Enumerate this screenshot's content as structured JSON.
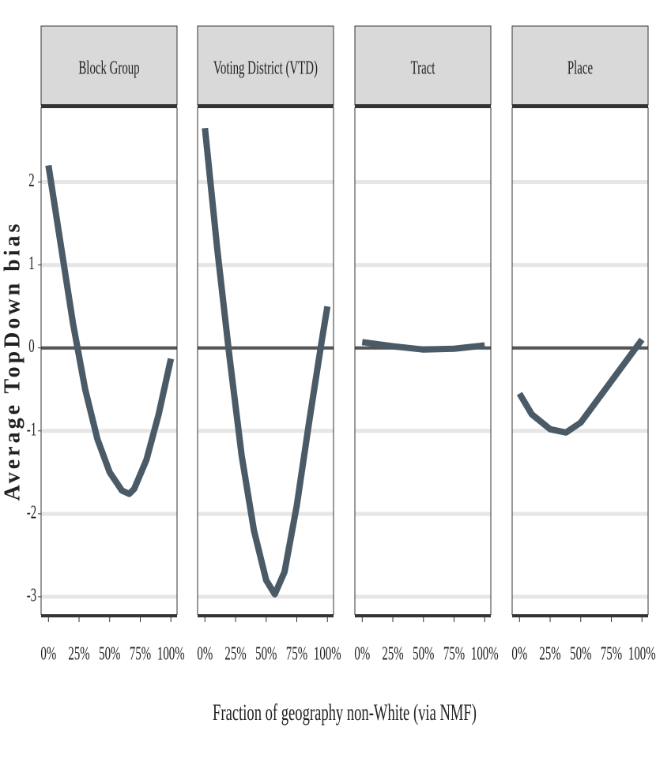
{
  "x_label": "Fraction of geography non-White (via NMF)",
  "y_label": "Average TopDown bias",
  "chart_data": [
    {
      "type": "line",
      "title": "Block Group",
      "x": [
        0,
        10,
        20,
        30,
        40,
        50,
        60,
        66,
        70,
        80,
        90,
        100
      ],
      "values": [
        2.2,
        1.25,
        0.3,
        -0.5,
        -1.1,
        -1.5,
        -1.72,
        -1.76,
        -1.7,
        -1.35,
        -0.8,
        -0.13
      ],
      "color": "#4a5a66",
      "xlim": [
        -6,
        105
      ],
      "ylim": [
        -3.22,
        2.9
      ],
      "xticks": [
        {
          "value": 0,
          "label": "0%"
        },
        {
          "value": 25,
          "label": "25%"
        },
        {
          "value": 50,
          "label": "50%"
        },
        {
          "value": 75,
          "label": "75%"
        },
        {
          "value": 100,
          "label": "100%"
        }
      ],
      "yticks": [
        2,
        1,
        0,
        -1,
        -2,
        -3
      ],
      "grid": true
    },
    {
      "type": "line",
      "title": "Voting District (VTD)",
      "x": [
        0,
        10,
        20,
        30,
        40,
        50,
        57,
        65,
        75,
        85,
        95,
        100
      ],
      "values": [
        2.65,
        1.2,
        -0.1,
        -1.3,
        -2.2,
        -2.8,
        -2.97,
        -2.7,
        -1.9,
        -0.9,
        0.05,
        0.5
      ],
      "color": "#4a5a66",
      "xlim": [
        -6,
        105
      ],
      "ylim": [
        -3.22,
        2.9
      ],
      "xticks": [
        {
          "value": 0,
          "label": "0%"
        },
        {
          "value": 25,
          "label": "25%"
        },
        {
          "value": 50,
          "label": "50%"
        },
        {
          "value": 75,
          "label": "75%"
        },
        {
          "value": 100,
          "label": "100%"
        }
      ],
      "yticks": [
        2,
        1,
        0,
        -1,
        -2,
        -3
      ],
      "grid": true
    },
    {
      "type": "line",
      "title": "Tract",
      "x": [
        0,
        25,
        50,
        75,
        100
      ],
      "values": [
        0.07,
        0.02,
        -0.02,
        -0.01,
        0.03
      ],
      "color": "#4a5a66",
      "xlim": [
        -6,
        105
      ],
      "ylim": [
        -3.22,
        2.9
      ],
      "xticks": [
        {
          "value": 0,
          "label": "0%"
        },
        {
          "value": 25,
          "label": "25%"
        },
        {
          "value": 50,
          "label": "50%"
        },
        {
          "value": 75,
          "label": "75%"
        },
        {
          "value": 100,
          "label": "100%"
        }
      ],
      "yticks": [
        2,
        1,
        0,
        -1,
        -2,
        -3
      ],
      "grid": true
    },
    {
      "type": "line",
      "title": "Place",
      "x": [
        0,
        10,
        25,
        38,
        50,
        75,
        100
      ],
      "values": [
        -0.55,
        -0.8,
        -0.98,
        -1.02,
        -0.9,
        -0.4,
        0.1
      ],
      "color": "#4a5a66",
      "xlim": [
        -6,
        105
      ],
      "ylim": [
        -3.22,
        2.9
      ],
      "xticks": [
        {
          "value": 0,
          "label": "0%"
        },
        {
          "value": 25,
          "label": "25%"
        },
        {
          "value": 50,
          "label": "50%"
        },
        {
          "value": 75,
          "label": "75%"
        },
        {
          "value": 100,
          "label": "100%"
        }
      ],
      "yticks": [
        2,
        1,
        0,
        -1,
        -2,
        -3
      ],
      "grid": true
    }
  ]
}
